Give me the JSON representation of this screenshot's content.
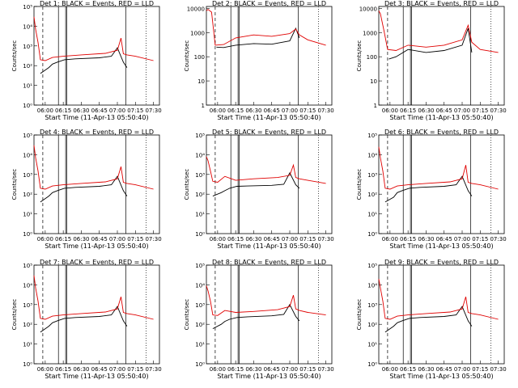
{
  "chart_data": [
    {
      "type": "line",
      "title": "Det 1: BLACK = Events, RED = LLD",
      "xlabel": "Start Time (11-Apr-13 05:50:40)",
      "ylabel": "Counts/sec",
      "yscale": "log",
      "y_ticks": [
        "10⁰",
        "10¹",
        "10²",
        "10³",
        "10⁴",
        "10⁵"
      ],
      "ylim": [
        1,
        100000
      ],
      "x_ticks": [
        "06:00",
        "06:15",
        "06:30",
        "06:45",
        "07:00",
        "07:15",
        "07:30"
      ],
      "xlim": [
        "05:50:40",
        "07:35"
      ],
      "series": [
        {
          "name": "Events",
          "color": "#000000",
          "x": [
            "05:56",
            "06:03",
            "06:06",
            "06:10",
            "06:16",
            "06:25",
            "06:45",
            "06:55",
            "07:00",
            "07:05",
            "07:08"
          ],
          "y": [
            40,
            80,
            120,
            150,
            200,
            220,
            250,
            300,
            800,
            150,
            80
          ]
        },
        {
          "name": "LLD",
          "color": "#e00000",
          "x": [
            "05:50:40",
            "05:52",
            "05:54",
            "05:56",
            "06:00",
            "06:06",
            "06:15",
            "06:30",
            "06:50",
            "07:00",
            "07:03",
            "07:05",
            "07:08",
            "07:15",
            "07:30"
          ],
          "y": [
            30000,
            7000,
            1500,
            200,
            180,
            260,
            300,
            350,
            420,
            600,
            2500,
            400,
            350,
            300,
            180
          ]
        }
      ]
    },
    {
      "type": "line",
      "title": "Det 2: BLACK = Events, RED = LLD",
      "xlabel": "Start Time (11-Apr-13 05:50:40)",
      "ylabel": "Counts/sec",
      "yscale": "log",
      "y_ticks": [
        "1",
        "10",
        "100",
        "1000",
        "10000"
      ],
      "ylim": [
        1,
        12000
      ],
      "x_ticks": [
        "06:00",
        "06:15",
        "06:30",
        "06:45",
        "07:00",
        "07:15",
        "07:30"
      ],
      "xlim": [
        "05:50:40",
        "07:35"
      ],
      "series": [
        {
          "name": "Events",
          "color": "#000000",
          "x": [
            "05:59",
            "06:05",
            "06:15",
            "06:30",
            "06:45",
            "07:00",
            "07:05",
            "07:08"
          ],
          "y": [
            250,
            240,
            300,
            350,
            330,
            450,
            1500,
            600
          ]
        },
        {
          "name": "LLD",
          "color": "#e00000",
          "x": [
            "05:50:40",
            "05:52",
            "05:55",
            "05:58",
            "06:05",
            "06:15",
            "06:30",
            "06:45",
            "07:00",
            "07:05",
            "07:08",
            "07:15",
            "07:30"
          ],
          "y": [
            8000,
            9000,
            7000,
            300,
            320,
            600,
            800,
            700,
            900,
            1400,
            800,
            500,
            300
          ]
        }
      ]
    },
    {
      "type": "line",
      "title": "Det 3: BLACK = Events, RED = LLD",
      "xlabel": "Start Time (11-Apr-13 05:50:40)",
      "ylabel": "Counts/sec",
      "yscale": "log",
      "y_ticks": [
        "1",
        "10",
        "100",
        "1000",
        "10000"
      ],
      "ylim": [
        1,
        12000
      ],
      "x_ticks": [
        "06:00",
        "06:15",
        "06:30",
        "06:45",
        "07:00",
        "07:15",
        "07:30"
      ],
      "xlim": [
        "05:50:40",
        "07:35"
      ],
      "series": [
        {
          "name": "Events",
          "color": "#000000",
          "x": [
            "05:59",
            "06:05",
            "06:15",
            "06:30",
            "06:45",
            "07:00",
            "07:05",
            "07:08"
          ],
          "y": [
            80,
            100,
            200,
            150,
            180,
            300,
            1500,
            150
          ]
        },
        {
          "name": "LLD",
          "color": "#e00000",
          "x": [
            "05:50:40",
            "05:52",
            "05:55",
            "05:58",
            "06:05",
            "06:15",
            "06:30",
            "06:45",
            "07:00",
            "07:05",
            "07:08",
            "07:15",
            "07:30"
          ],
          "y": [
            8000,
            6000,
            1200,
            200,
            180,
            300,
            250,
            300,
            500,
            2000,
            400,
            200,
            150
          ]
        }
      ]
    },
    {
      "type": "line",
      "title": "Det 4: BLACK = Events, RED = LLD",
      "xlabel": "Start Time (11-Apr-13 05:50:40)",
      "ylabel": "Counts/sec",
      "yscale": "log",
      "y_ticks": [
        "10⁰",
        "10¹",
        "10²",
        "10³",
        "10⁴",
        "10⁵"
      ],
      "ylim": [
        1,
        100000
      ],
      "x_ticks": [
        "06:00",
        "06:15",
        "06:30",
        "06:45",
        "07:00",
        "07:15",
        "07:30"
      ],
      "xlim": [
        "05:50:40",
        "07:35"
      ],
      "series": [
        {
          "name": "Events",
          "color": "#000000",
          "x": [
            "05:56",
            "06:03",
            "06:06",
            "06:10",
            "06:16",
            "06:25",
            "06:45",
            "06:55",
            "07:00",
            "07:05",
            "07:08"
          ],
          "y": [
            40,
            80,
            120,
            150,
            200,
            220,
            250,
            300,
            800,
            150,
            80
          ]
        },
        {
          "name": "LLD",
          "color": "#e00000",
          "x": [
            "05:50:40",
            "05:52",
            "05:54",
            "05:56",
            "06:00",
            "06:06",
            "06:15",
            "06:30",
            "06:50",
            "07:00",
            "07:03",
            "07:05",
            "07:08",
            "07:15",
            "07:30"
          ],
          "y": [
            30000,
            7000,
            1500,
            200,
            180,
            260,
            300,
            350,
            420,
            600,
            2500,
            400,
            350,
            300,
            180
          ]
        }
      ]
    },
    {
      "type": "line",
      "title": "Det 5: BLACK = Events, RED = LLD",
      "xlabel": "Start Time (11-Apr-13 05:50:40)",
      "ylabel": "Counts/sec",
      "yscale": "log",
      "y_ticks": [
        "10⁰",
        "10¹",
        "10²",
        "10³",
        "10⁴",
        "10⁵"
      ],
      "ylim": [
        1,
        100000
      ],
      "x_ticks": [
        "06:00",
        "06:15",
        "06:30",
        "06:45",
        "07:00",
        "07:15",
        "07:30"
      ],
      "xlim": [
        "05:50:40",
        "07:35"
      ],
      "series": [
        {
          "name": "Events",
          "color": "#000000",
          "x": [
            "05:56",
            "06:03",
            "06:06",
            "06:10",
            "06:16",
            "06:25",
            "06:45",
            "06:55",
            "07:00",
            "07:05",
            "07:08"
          ],
          "y": [
            80,
            120,
            150,
            200,
            250,
            260,
            280,
            320,
            1200,
            300,
            200
          ]
        },
        {
          "name": "LLD",
          "color": "#e00000",
          "x": [
            "05:50:40",
            "05:52",
            "05:54",
            "05:56",
            "06:00",
            "06:06",
            "06:15",
            "06:30",
            "06:50",
            "07:00",
            "07:03",
            "07:05",
            "07:08",
            "07:15",
            "07:30"
          ],
          "y": [
            8000,
            5000,
            1500,
            450,
            400,
            800,
            500,
            600,
            700,
            900,
            3000,
            700,
            600,
            500,
            350
          ]
        }
      ]
    },
    {
      "type": "line",
      "title": "Det 6: BLACK = Events, RED = LLD",
      "xlabel": "Start Time (11-Apr-13 05:50:40)",
      "ylabel": "Counts/sec",
      "yscale": "log",
      "y_ticks": [
        "10⁰",
        "10¹",
        "10²",
        "10³",
        "10⁴",
        "10⁵"
      ],
      "ylim": [
        1,
        100000
      ],
      "x_ticks": [
        "06:00",
        "06:15",
        "06:30",
        "06:45",
        "07:00",
        "07:15",
        "07:30"
      ],
      "xlim": [
        "05:50:40",
        "07:35"
      ],
      "series": [
        {
          "name": "Events",
          "color": "#000000",
          "x": [
            "05:56",
            "06:03",
            "06:06",
            "06:10",
            "06:16",
            "06:25",
            "06:45",
            "06:55",
            "07:00",
            "07:05",
            "07:08"
          ],
          "y": [
            40,
            70,
            120,
            150,
            200,
            220,
            250,
            300,
            800,
            150,
            80
          ]
        },
        {
          "name": "LLD",
          "color": "#e00000",
          "x": [
            "05:50:40",
            "05:52",
            "05:54",
            "05:56",
            "06:00",
            "06:06",
            "06:15",
            "06:30",
            "06:50",
            "07:00",
            "07:03",
            "07:05",
            "07:08",
            "07:15",
            "07:30"
          ],
          "y": [
            25000,
            7000,
            1500,
            200,
            180,
            260,
            300,
            350,
            420,
            600,
            3000,
            400,
            350,
            300,
            180
          ]
        }
      ]
    },
    {
      "type": "line",
      "title": "Det 7: BLACK = Events, RED = LLD",
      "xlabel": "Start Time (11-Apr-13 05:50:40)",
      "ylabel": "Counts/sec",
      "yscale": "log",
      "y_ticks": [
        "10⁰",
        "10¹",
        "10²",
        "10³",
        "10⁴",
        "10⁵"
      ],
      "ylim": [
        1,
        100000
      ],
      "x_ticks": [
        "06:00",
        "06:15",
        "06:30",
        "06:45",
        "07:00",
        "07:15",
        "07:30"
      ],
      "xlim": [
        "05:50:40",
        "07:35"
      ],
      "series": [
        {
          "name": "Events",
          "color": "#000000",
          "x": [
            "05:56",
            "06:03",
            "06:06",
            "06:10",
            "06:16",
            "06:25",
            "06:45",
            "06:55",
            "07:00",
            "07:05",
            "07:08"
          ],
          "y": [
            40,
            80,
            120,
            150,
            200,
            220,
            250,
            300,
            800,
            150,
            80
          ]
        },
        {
          "name": "LLD",
          "color": "#e00000",
          "x": [
            "05:50:40",
            "05:52",
            "05:54",
            "05:56",
            "06:00",
            "06:06",
            "06:15",
            "06:30",
            "06:50",
            "07:00",
            "07:03",
            "07:05",
            "07:08",
            "07:15",
            "07:30"
          ],
          "y": [
            30000,
            7000,
            1500,
            200,
            180,
            260,
            300,
            350,
            420,
            600,
            2500,
            400,
            350,
            300,
            180
          ]
        }
      ]
    },
    {
      "type": "line",
      "title": "Det 8: BLACK = Events, RED = LLD",
      "xlabel": "Start Time (11-Apr-13 05:50:40)",
      "ylabel": "Counts/sec",
      "yscale": "log",
      "y_ticks": [
        "10⁰",
        "10¹",
        "10²",
        "10³",
        "10⁴",
        "10⁵"
      ],
      "ylim": [
        1,
        100000
      ],
      "x_ticks": [
        "06:00",
        "06:15",
        "06:30",
        "06:45",
        "07:00",
        "07:15",
        "07:30"
      ],
      "xlim": [
        "05:50:40",
        "07:35"
      ],
      "series": [
        {
          "name": "Events",
          "color": "#000000",
          "x": [
            "05:56",
            "06:03",
            "06:06",
            "06:10",
            "06:16",
            "06:25",
            "06:45",
            "06:55",
            "07:00",
            "07:05",
            "07:08"
          ],
          "y": [
            60,
            100,
            140,
            180,
            220,
            240,
            270,
            320,
            1000,
            250,
            150
          ]
        },
        {
          "name": "LLD",
          "color": "#e00000",
          "x": [
            "05:50:40",
            "05:52",
            "05:54",
            "05:56",
            "06:00",
            "06:06",
            "06:15",
            "06:30",
            "06:50",
            "07:00",
            "07:03",
            "07:05",
            "07:08",
            "07:15",
            "07:30"
          ],
          "y": [
            9000,
            5000,
            1500,
            300,
            280,
            500,
            400,
            450,
            550,
            800,
            3000,
            600,
            500,
            400,
            300
          ]
        }
      ]
    },
    {
      "type": "line",
      "title": "Det 9: BLACK = Events, RED = LLD",
      "xlabel": "Start Time (11-Apr-13 05:50:40)",
      "ylabel": "Counts/sec",
      "yscale": "log",
      "y_ticks": [
        "10⁰",
        "10¹",
        "10²",
        "10³",
        "10⁴",
        "10⁵"
      ],
      "ylim": [
        1,
        100000
      ],
      "x_ticks": [
        "06:00",
        "06:15",
        "06:30",
        "06:45",
        "07:00",
        "07:15",
        "07:30"
      ],
      "xlim": [
        "05:50:40",
        "07:35"
      ],
      "series": [
        {
          "name": "Events",
          "color": "#000000",
          "x": [
            "05:56",
            "06:03",
            "06:06",
            "06:10",
            "06:16",
            "06:25",
            "06:45",
            "06:55",
            "07:00",
            "07:05",
            "07:08"
          ],
          "y": [
            40,
            80,
            120,
            150,
            200,
            220,
            250,
            300,
            800,
            150,
            80
          ]
        },
        {
          "name": "LLD",
          "color": "#e00000",
          "x": [
            "05:50:40",
            "05:52",
            "05:54",
            "05:56",
            "06:00",
            "06:06",
            "06:15",
            "06:30",
            "06:50",
            "07:00",
            "07:03",
            "07:05",
            "07:08",
            "07:15",
            "07:30"
          ],
          "y": [
            20000,
            7000,
            1500,
            200,
            180,
            260,
            300,
            350,
            420,
            600,
            2500,
            400,
            350,
            300,
            180
          ]
        }
      ]
    }
  ]
}
